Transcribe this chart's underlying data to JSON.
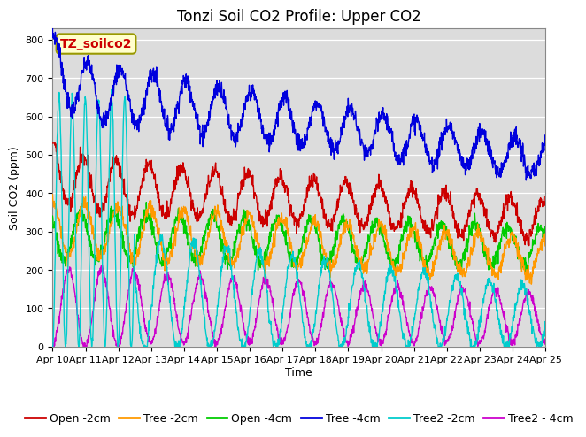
{
  "title": "Tonzi Soil CO2 Profile: Upper CO2",
  "ylabel": "Soil CO2 (ppm)",
  "xlabel": "Time",
  "watermark": "TZ_soilco2",
  "ylim": [
    0,
    830
  ],
  "bg_color": "#dcdcdc",
  "series": {
    "Open_2cm": {
      "color": "#cc0000",
      "label": "Open -2cm"
    },
    "Tree_2cm": {
      "color": "#ff9900",
      "label": "Tree -2cm"
    },
    "Open_4cm": {
      "color": "#00cc00",
      "label": "Open -4cm"
    },
    "Tree_4cm": {
      "color": "#0000dd",
      "label": "Tree -4cm"
    },
    "Tree2_2cm": {
      "color": "#00cccc",
      "label": "Tree2 -2cm"
    },
    "Tree2_4cm": {
      "color": "#cc00cc",
      "label": "Tree2 - 4cm"
    }
  },
  "xtick_labels": [
    "Apr 10",
    "Apr 11",
    "Apr 12",
    "Apr 13",
    "Apr 14",
    "Apr 15",
    "Apr 16",
    "Apr 17",
    "Apr 18",
    "Apr 19",
    "Apr 20",
    "Apr 21",
    "Apr 22",
    "Apr 23",
    "Apr 24",
    "Apr 25"
  ],
  "ytick_vals": [
    0,
    100,
    200,
    300,
    400,
    500,
    600,
    700,
    800
  ],
  "title_fontsize": 12,
  "label_fontsize": 9,
  "tick_fontsize": 8,
  "legend_fontsize": 9
}
